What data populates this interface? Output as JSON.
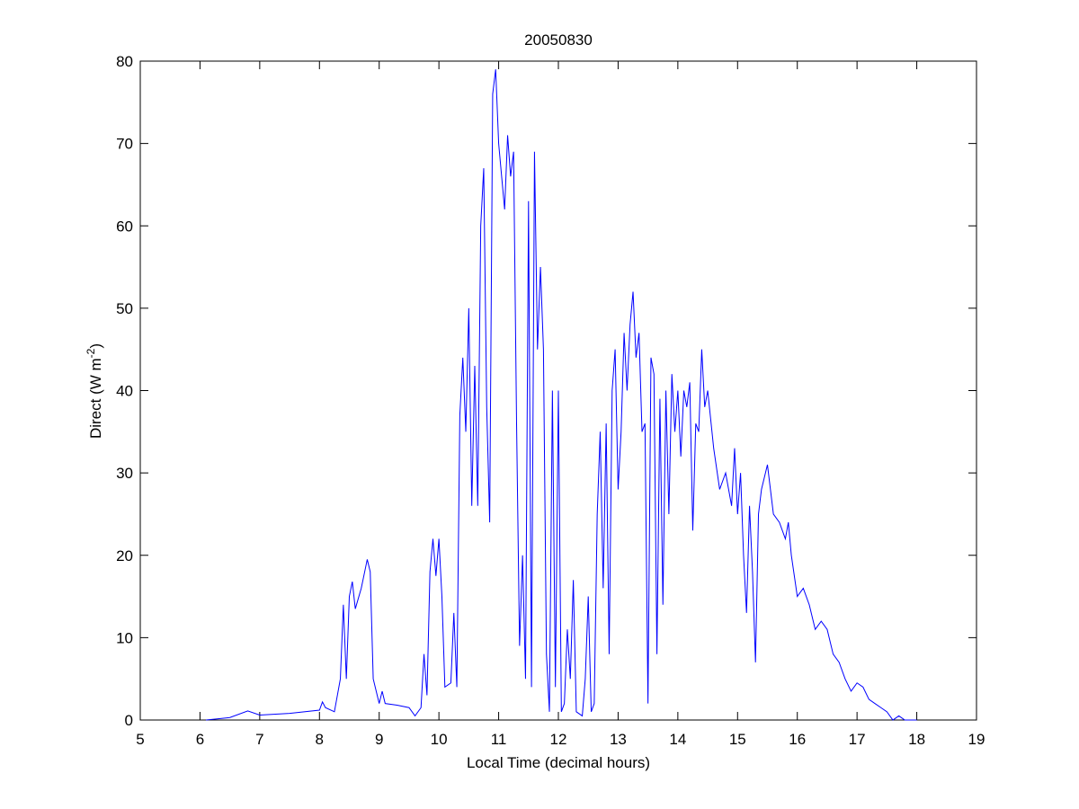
{
  "chart_data": {
    "type": "line",
    "title": "20050830",
    "xlabel": "Local Time (decimal hours)",
    "ylabel": {
      "text": "Direct (W m",
      "superscript": "-2",
      "suffix": ")"
    },
    "xlim": [
      5,
      19
    ],
    "xticks": [
      5,
      6,
      7,
      8,
      9,
      10,
      11,
      12,
      13,
      14,
      15,
      16,
      17,
      18,
      19
    ],
    "ylim": [
      0,
      80
    ],
    "yticks": [
      0,
      10,
      20,
      30,
      40,
      50,
      60,
      70,
      80
    ],
    "grid": false,
    "series": [
      {
        "color": "#0000ff",
        "x": [
          6.1,
          6.5,
          6.8,
          7.0,
          7.5,
          8.0,
          8.05,
          8.1,
          8.25,
          8.35,
          8.4,
          8.45,
          8.5,
          8.55,
          8.6,
          8.7,
          8.8,
          8.85,
          8.9,
          9.0,
          9.05,
          9.1,
          9.3,
          9.5,
          9.6,
          9.7,
          9.75,
          9.8,
          9.85,
          9.9,
          9.95,
          10.0,
          10.05,
          10.1,
          10.2,
          10.25,
          10.3,
          10.35,
          10.4,
          10.45,
          10.5,
          10.55,
          10.6,
          10.65,
          10.7,
          10.75,
          10.8,
          10.85,
          10.9,
          10.95,
          11.0,
          11.05,
          11.1,
          11.15,
          11.2,
          11.25,
          11.3,
          11.35,
          11.4,
          11.45,
          11.5,
          11.55,
          11.6,
          11.65,
          11.7,
          11.75,
          11.8,
          11.85,
          11.9,
          11.95,
          12.0,
          12.05,
          12.1,
          12.15,
          12.2,
          12.25,
          12.3,
          12.4,
          12.45,
          12.5,
          12.55,
          12.6,
          12.65,
          12.7,
          12.75,
          12.8,
          12.85,
          12.9,
          12.95,
          13.0,
          13.05,
          13.1,
          13.15,
          13.2,
          13.25,
          13.3,
          13.35,
          13.4,
          13.45,
          13.5,
          13.55,
          13.6,
          13.65,
          13.7,
          13.75,
          13.8,
          13.85,
          13.9,
          13.95,
          14.0,
          14.05,
          14.1,
          14.15,
          14.2,
          14.25,
          14.3,
          14.35,
          14.4,
          14.45,
          14.5,
          14.6,
          14.7,
          14.8,
          14.9,
          14.95,
          15.0,
          15.05,
          15.1,
          15.15,
          15.2,
          15.25,
          15.3,
          15.35,
          15.4,
          15.5,
          15.6,
          15.7,
          15.8,
          15.85,
          15.9,
          16.0,
          16.1,
          16.2,
          16.3,
          16.4,
          16.5,
          16.6,
          16.7,
          16.8,
          16.9,
          17.0,
          17.1,
          17.2,
          17.3,
          17.4,
          17.5,
          17.6,
          17.7,
          17.8,
          18.0
        ],
        "values": [
          0,
          0.3,
          1.1,
          0.6,
          0.8,
          1.2,
          2.2,
          1.5,
          1.0,
          5,
          14,
          5,
          15,
          16.8,
          13.5,
          16,
          19.5,
          18,
          5,
          2,
          3.5,
          2,
          1.8,
          1.5,
          0.5,
          1.5,
          8,
          3,
          18,
          22,
          17.5,
          22,
          15,
          4,
          4.5,
          13,
          4,
          37,
          44,
          35,
          50,
          26,
          43,
          26,
          60,
          67,
          38,
          24,
          76,
          79,
          70,
          66,
          62,
          71,
          66,
          69,
          36,
          9,
          20,
          5,
          63,
          4,
          69,
          45,
          55,
          45,
          8,
          1,
          40,
          4,
          40,
          1,
          2,
          11,
          5,
          17,
          1,
          0.5,
          5,
          15,
          1,
          2,
          25,
          35,
          16,
          36,
          8,
          40,
          45,
          28,
          35,
          47,
          40,
          48,
          52,
          44,
          47,
          35,
          36,
          2,
          44,
          42,
          8,
          39,
          14,
          40,
          25,
          42,
          35,
          40,
          32,
          40,
          38,
          41,
          23,
          36,
          35,
          45,
          38,
          40,
          33,
          28,
          30,
          26,
          33,
          25,
          30,
          20,
          13,
          26,
          18,
          7,
          25,
          28,
          31,
          25,
          24,
          22,
          24,
          20,
          15,
          16,
          14,
          11,
          12,
          11,
          8,
          7,
          5,
          3.5,
          4.5,
          4,
          2.5,
          2,
          1.5,
          1,
          0,
          0.5,
          0,
          0
        ]
      }
    ]
  }
}
